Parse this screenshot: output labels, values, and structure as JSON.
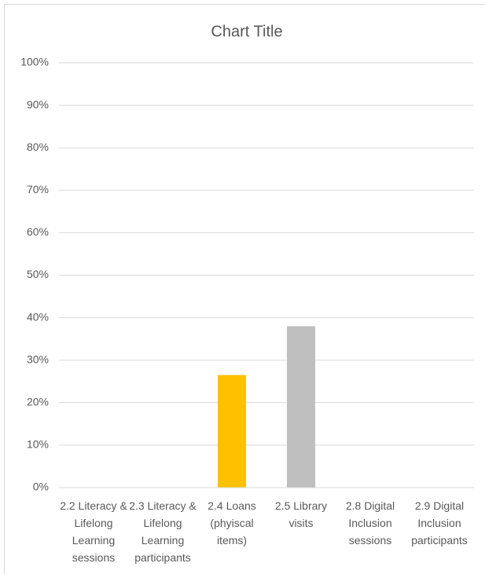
{
  "chart_data": {
    "type": "bar",
    "title": "Chart Title",
    "categories": [
      "2.2 Literacy & Lifelong Learning sessions",
      "2.3 Literacy & Lifelong Learning participants",
      "2.4 Loans (phyiscal items)",
      "2.5 Library visits",
      "2.8 Digital Inclusion sessions",
      "2.9 Digital Inclusion participants"
    ],
    "values": [
      0,
      0,
      26.5,
      38,
      0,
      0
    ],
    "colors": [
      null,
      null,
      "#ffc000",
      "#bfbfbf",
      null,
      null
    ],
    "ylim": [
      0,
      100
    ],
    "yticks": [
      {
        "value": 0,
        "label": "0%"
      },
      {
        "value": 10,
        "label": "10%"
      },
      {
        "value": 20,
        "label": "20%"
      },
      {
        "value": 30,
        "label": "30%"
      },
      {
        "value": 40,
        "label": "40%"
      },
      {
        "value": 50,
        "label": "50%"
      },
      {
        "value": 60,
        "label": "60%"
      },
      {
        "value": 70,
        "label": "70%"
      },
      {
        "value": 80,
        "label": "80%"
      },
      {
        "value": 90,
        "label": "90%"
      },
      {
        "value": 100,
        "label": "100%"
      }
    ],
    "grid": true
  }
}
